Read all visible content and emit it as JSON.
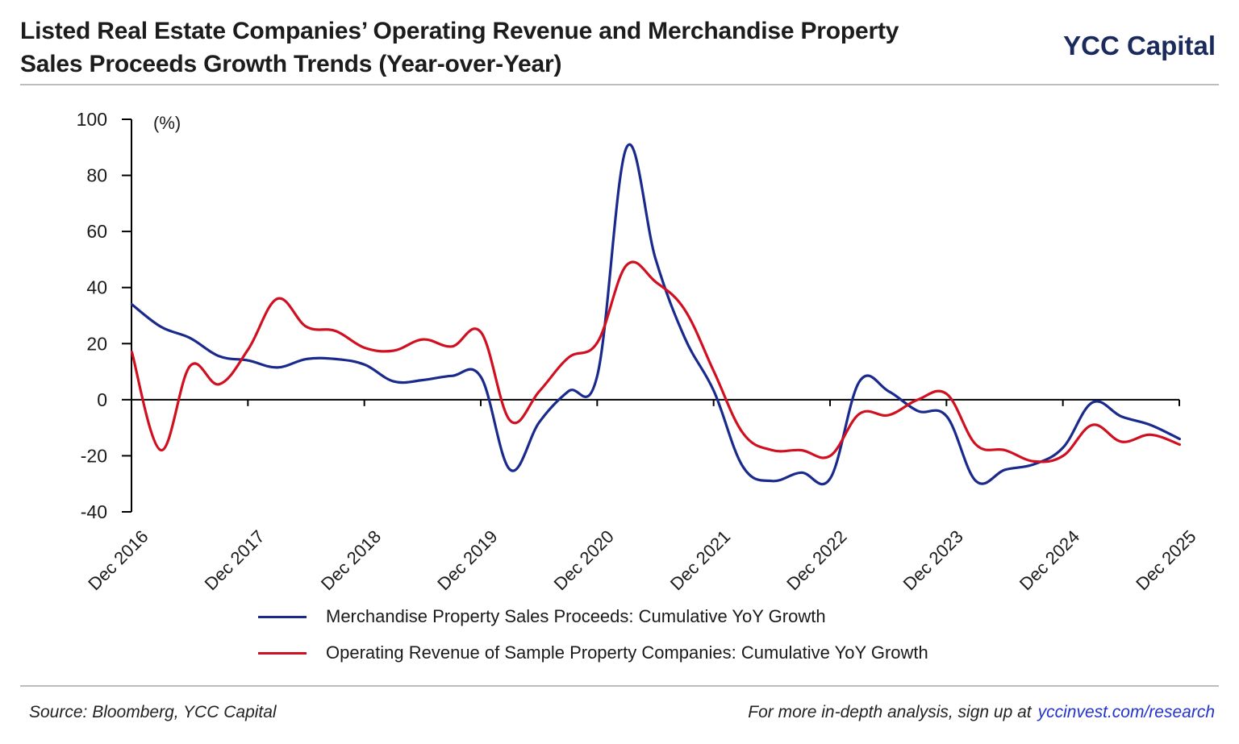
{
  "header": {
    "title_line1": "Listed Real Estate Companies’ Operating Revenue and Merchandise Property",
    "title_line2": "Sales Proceeds Growth Trends (Year-over-Year)",
    "brand": "YCC Capital"
  },
  "footer": {
    "source": "Source: Bloomberg, YCC Capital",
    "cta": "For more in-depth analysis, sign up at",
    "link": "yccinvest.com/research"
  },
  "colors": {
    "series_blue": "#1a2a8c",
    "series_red": "#d01020",
    "axis": "#000000",
    "link": "#2233cc"
  },
  "chart_data": {
    "type": "line",
    "title": "Listed Real Estate Companies’ Operating Revenue and Merchandise Property Sales Proceeds Growth Trends (Year-over-Year)",
    "unit_label": "(%)",
    "ylim": [
      -40,
      100
    ],
    "yticks": [
      -40,
      -20,
      0,
      20,
      40,
      60,
      80,
      100
    ],
    "xlim": [
      2016.917,
      2025.917
    ],
    "xtick_labels": [
      "Dec 2016",
      "Dec 2017",
      "Dec 2018",
      "Dec 2019",
      "Dec 2020",
      "Dec 2021",
      "Dec 2022",
      "Dec 2023",
      "Dec 2024",
      "Dec 2025"
    ],
    "grid": false,
    "legend_position": "bottom",
    "series": [
      {
        "name": "Merchandise Property Sales Proceeds: Cumulative YoY Growth",
        "color": "#1a2a8c",
        "points": [
          [
            2016.92,
            34
          ],
          [
            2017.17,
            26
          ],
          [
            2017.42,
            22
          ],
          [
            2017.67,
            15.5
          ],
          [
            2017.92,
            14
          ],
          [
            2018.17,
            11.5
          ],
          [
            2018.42,
            14.5
          ],
          [
            2018.67,
            14.5
          ],
          [
            2018.92,
            12.5
          ],
          [
            2019.17,
            6.5
          ],
          [
            2019.42,
            7
          ],
          [
            2019.67,
            8.5
          ],
          [
            2019.92,
            8
          ],
          [
            2020.17,
            -25
          ],
          [
            2020.42,
            -8
          ],
          [
            2020.67,
            3
          ],
          [
            2020.92,
            9
          ],
          [
            2021.17,
            90
          ],
          [
            2021.42,
            50
          ],
          [
            2021.67,
            22
          ],
          [
            2021.92,
            3
          ],
          [
            2022.17,
            -24
          ],
          [
            2022.42,
            -29
          ],
          [
            2022.67,
            -26
          ],
          [
            2022.92,
            -28
          ],
          [
            2023.17,
            6.5
          ],
          [
            2023.42,
            3
          ],
          [
            2023.67,
            -4
          ],
          [
            2023.92,
            -6
          ],
          [
            2024.17,
            -29
          ],
          [
            2024.42,
            -25
          ],
          [
            2024.67,
            -23
          ],
          [
            2024.92,
            -17
          ],
          [
            2025.17,
            -1
          ],
          [
            2025.42,
            -6
          ],
          [
            2025.67,
            -9
          ],
          [
            2025.92,
            -14
          ]
        ]
      },
      {
        "name": "Operating Revenue of Sample Property Companies: Cumulative YoY Growth",
        "color": "#d01020",
        "points": [
          [
            2016.92,
            17
          ],
          [
            2017.17,
            -18
          ],
          [
            2017.42,
            12
          ],
          [
            2017.67,
            5.5
          ],
          [
            2017.92,
            18
          ],
          [
            2018.17,
            36
          ],
          [
            2018.42,
            26
          ],
          [
            2018.67,
            24.5
          ],
          [
            2018.92,
            18.5
          ],
          [
            2019.17,
            17.5
          ],
          [
            2019.42,
            21.5
          ],
          [
            2019.67,
            19
          ],
          [
            2019.92,
            24
          ],
          [
            2020.17,
            -7.5
          ],
          [
            2020.42,
            3
          ],
          [
            2020.67,
            15
          ],
          [
            2020.92,
            20.5
          ],
          [
            2021.17,
            48
          ],
          [
            2021.42,
            42
          ],
          [
            2021.67,
            32
          ],
          [
            2021.92,
            10
          ],
          [
            2022.17,
            -12
          ],
          [
            2022.42,
            -18
          ],
          [
            2022.67,
            -18
          ],
          [
            2022.92,
            -20
          ],
          [
            2023.17,
            -5
          ],
          [
            2023.42,
            -5.5
          ],
          [
            2023.67,
            0
          ],
          [
            2023.92,
            2
          ],
          [
            2024.17,
            -16
          ],
          [
            2024.42,
            -18
          ],
          [
            2024.67,
            -22
          ],
          [
            2024.92,
            -20
          ],
          [
            2025.17,
            -9
          ],
          [
            2025.42,
            -15
          ],
          [
            2025.67,
            -12.5
          ],
          [
            2025.92,
            -16
          ]
        ]
      }
    ]
  }
}
